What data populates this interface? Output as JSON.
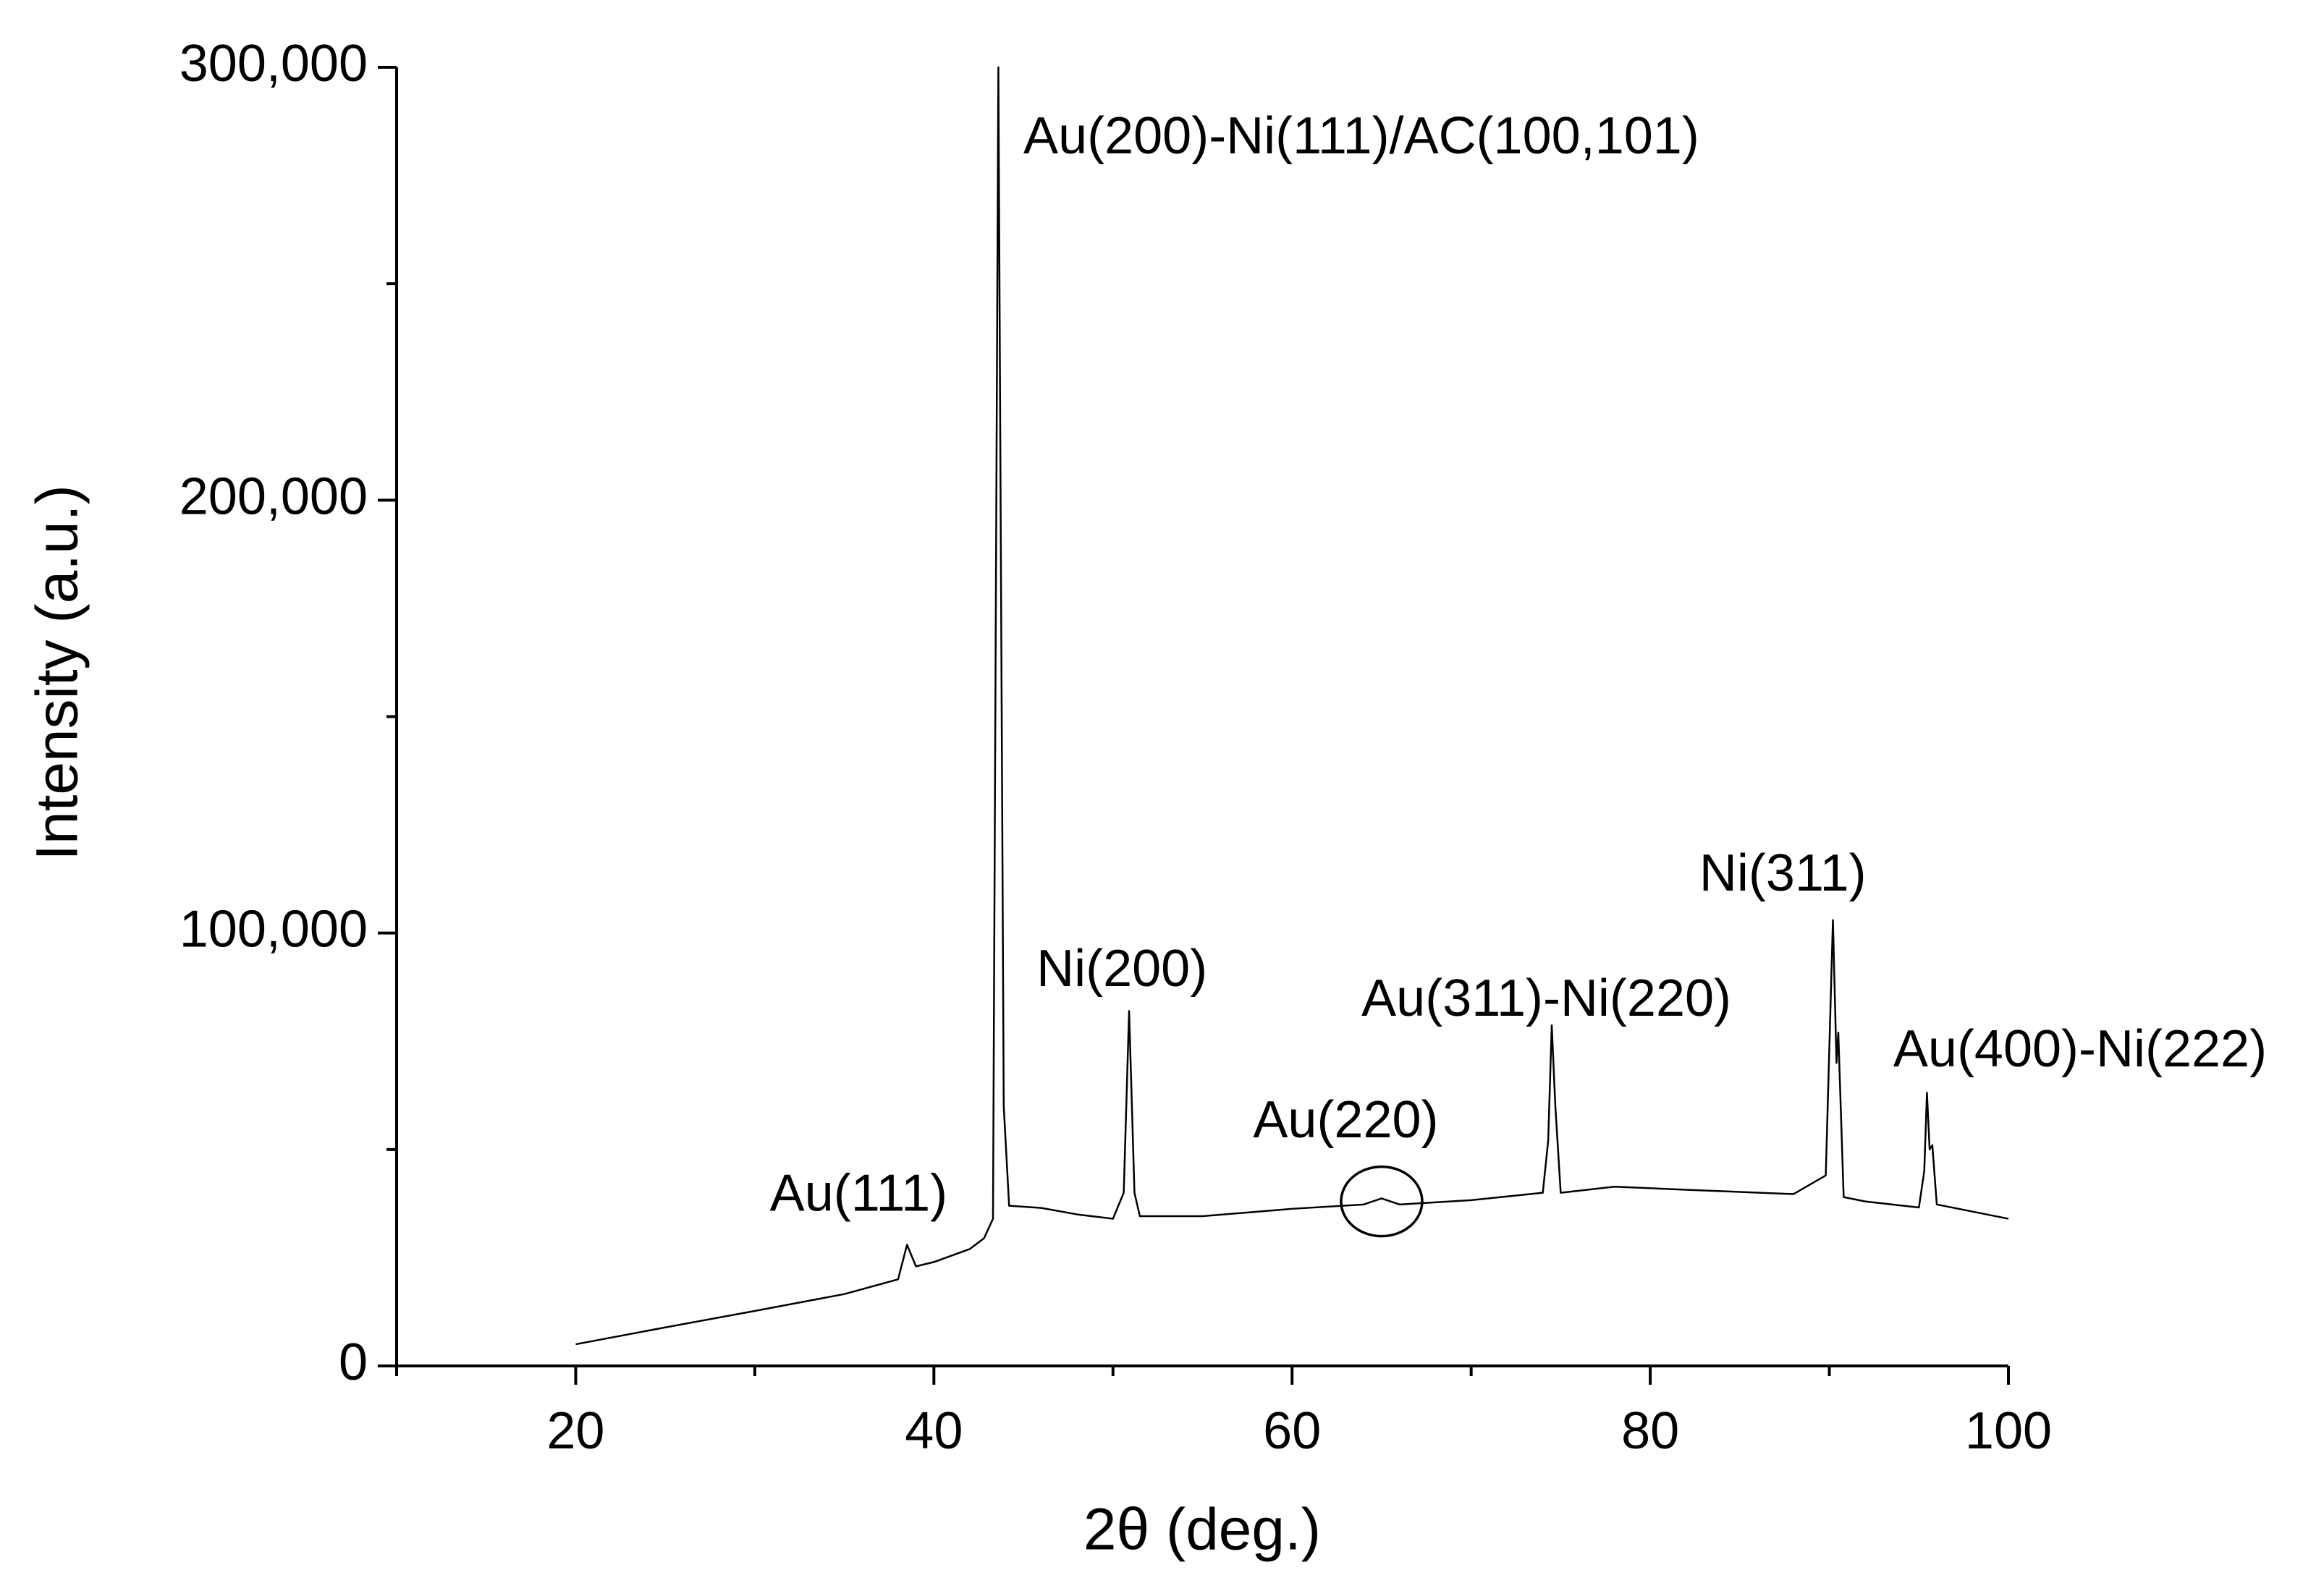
{
  "chart_data": {
    "type": "line",
    "x_label": "2θ (deg.)",
    "y_label": "Intensity (a.u.)",
    "xlim": [
      10,
      100
    ],
    "ylim": [
      0,
      300000
    ],
    "xticks": [
      20,
      40,
      60,
      80,
      100
    ],
    "xticks_minor": [
      10,
      30,
      50,
      70,
      90
    ],
    "yticks": [
      0,
      {
        "value": 100000,
        "label": "100,000"
      },
      {
        "value": 200000,
        "label": "200,000"
      },
      {
        "value": 300000,
        "label": "300,000"
      }
    ],
    "yticks_minor": [
      50000,
      150000,
      250000
    ],
    "grid": false,
    "series": [
      {
        "color": "#000000",
        "x": [
          20,
          25,
          30,
          35,
          38,
          38.5,
          39,
          40,
          41,
          42,
          42.8,
          43.3,
          43.6,
          43.9,
          44.2,
          46,
          48,
          50,
          50.6,
          50.9,
          51.2,
          51.5,
          55,
          60,
          64,
          65,
          66,
          70,
          74,
          74.3,
          74.5,
          74.7,
          75,
          78,
          82,
          88,
          89.8,
          90.2,
          90.4,
          90.5,
          90.8,
          92,
          95,
          95.3,
          95.45,
          95.6,
          95.75,
          96,
          100
        ],
        "values": [
          5000,
          8900,
          12700,
          16600,
          20000,
          28000,
          23000,
          24000,
          25500,
          27000,
          29500,
          34000,
          300000,
          60000,
          37000,
          36500,
          35000,
          34000,
          40000,
          82000,
          40000,
          34600,
          34600,
          36300,
          37300,
          38700,
          37300,
          38300,
          40000,
          52000,
          78700,
          60000,
          40000,
          41400,
          40700,
          39700,
          44000,
          103000,
          70000,
          77000,
          39000,
          38000,
          36600,
          45000,
          63100,
          50000,
          51000,
          37300,
          34000
        ]
      }
    ],
    "annotations": [
      {
        "text": "Au(200)-Ni(111)/AC(100,101)",
        "x": 45.0,
        "y": 283300,
        "anchor": "start"
      },
      {
        "text": "Au(111)",
        "x": 35.8,
        "y": 39000,
        "anchor": "middle"
      },
      {
        "text": "Ni(200)",
        "x": 50.5,
        "y": 90900,
        "anchor": "middle"
      },
      {
        "text": "Au(220)",
        "x": 63.0,
        "y": 56000,
        "anchor": "middle",
        "circle": {
          "x": 65,
          "y": 38000
        }
      },
      {
        "text": "Au(311)-Ni(220)",
        "x": 74.2,
        "y": 84100,
        "anchor": "middle"
      },
      {
        "text": "Ni(311)",
        "x": 87.4,
        "y": 113000,
        "anchor": "middle"
      },
      {
        "text": "Au(400)-Ni(222)",
        "x": 104.0,
        "y": 72400,
        "anchor": "middle"
      }
    ]
  }
}
